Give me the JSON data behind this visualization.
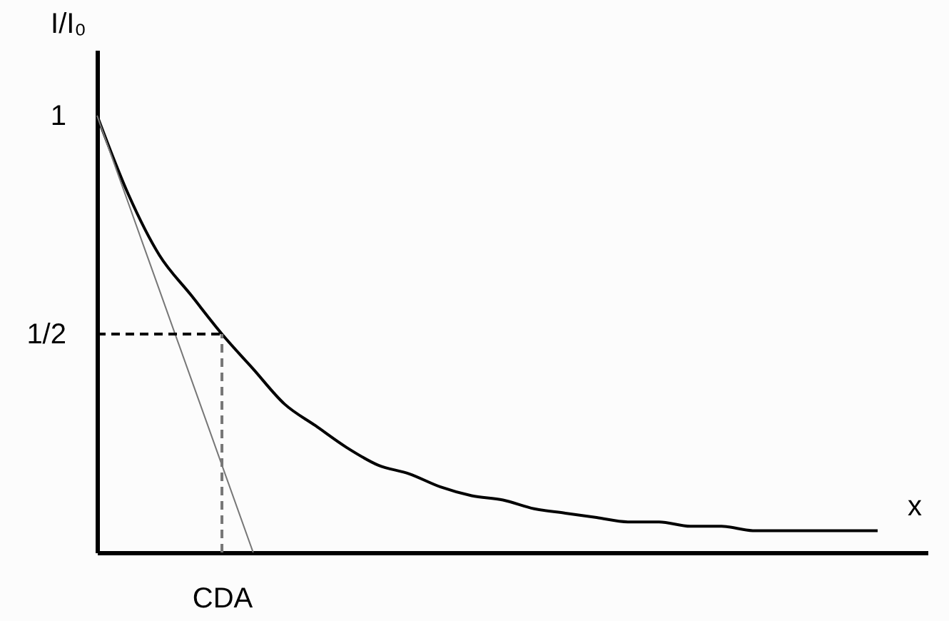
{
  "chart_data": {
    "type": "line",
    "xlabel": "x",
    "ylabel": "I/I₀",
    "categories": [
      null,
      null,
      null,
      null,
      "CDA",
      null,
      null,
      null,
      null,
      null,
      null,
      null,
      null,
      null,
      null,
      null,
      null,
      null,
      null,
      null,
      null,
      null,
      null,
      null,
      null,
      null
    ],
    "series": [
      {
        "color": "#000000",
        "values": [
          1.0,
          0.82,
          0.68,
          0.59,
          0.5,
          0.42,
          0.34,
          0.29,
          0.24,
          0.2,
          0.18,
          0.15,
          0.13,
          0.12,
          0.1,
          0.09,
          0.08,
          0.07,
          0.07,
          0.06,
          0.06,
          0.05,
          0.05,
          0.05,
          0.05,
          0.05
        ]
      },
      {
        "color": "#777777",
        "values": [
          1.0,
          0.8,
          0.6,
          0.4,
          0.2,
          0.0,
          null,
          null,
          null,
          null,
          null,
          null,
          null,
          null,
          null,
          null,
          null,
          null,
          null,
          null,
          null,
          null,
          null,
          null,
          null,
          null
        ]
      }
    ],
    "ylim": [
      0,
      1.15
    ],
    "yticks": [
      {
        "value": 0.5,
        "label": "1/2"
      },
      1
    ],
    "ref_lines": [
      {
        "axis": "y",
        "value": 0.5,
        "color": "#000000",
        "line_style": "dashed"
      },
      {
        "axis": "x",
        "value": "CDA",
        "color": "#777777",
        "line_style": "dashed"
      }
    ],
    "grid": false,
    "marker": "none",
    "line_style": "solid"
  }
}
